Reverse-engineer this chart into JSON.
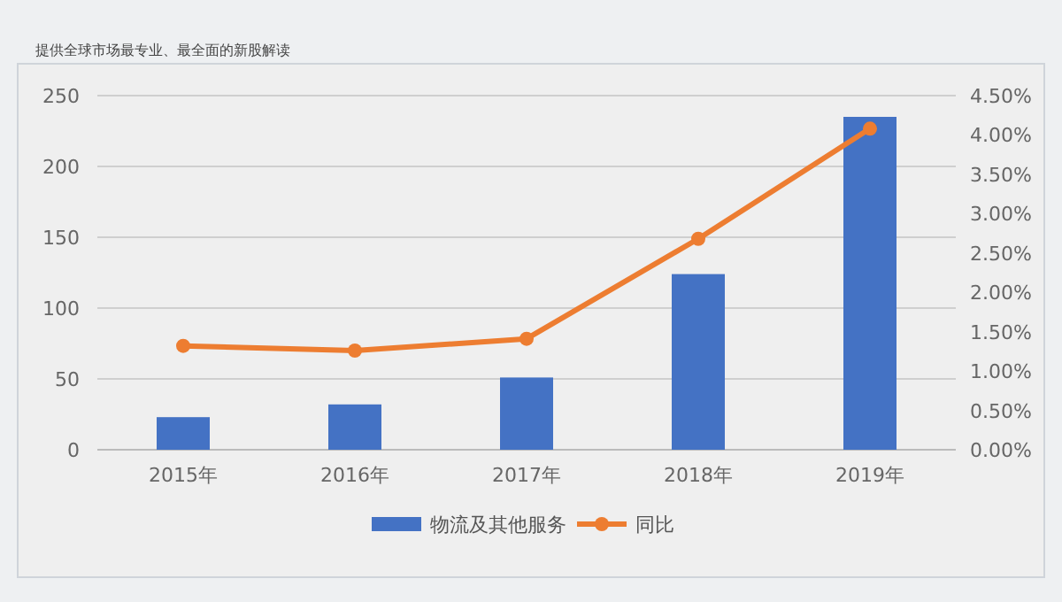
{
  "chart_data": {
    "type": "bar",
    "subtitle": "提供全球市场最专业、最全面的新股解读",
    "categories": [
      "2015年",
      "2016年",
      "2017年",
      "2018年",
      "2019年"
    ],
    "series": [
      {
        "name": "物流及其他服务",
        "color": "#4472c4",
        "values": [
          23,
          32,
          51,
          124,
          235
        ]
      },
      {
        "name": "同比",
        "type": "line",
        "axis": "y2",
        "color": "#ed7d31",
        "marker": "circle",
        "values": [
          1.32,
          1.26,
          1.41,
          2.68,
          4.08
        ]
      }
    ],
    "ylim": [
      0,
      250
    ],
    "yticks": [
      0,
      50,
      100,
      150,
      200,
      250
    ],
    "y2lim": [
      0,
      4.5
    ],
    "y2ticks": [
      {
        "value": 0,
        "label": "0.00%"
      },
      {
        "value": 0.5,
        "label": "0.50%"
      },
      {
        "value": 1,
        "label": "1.00%"
      },
      {
        "value": 1.5,
        "label": "1.50%"
      },
      {
        "value": 2,
        "label": "2.00%"
      },
      {
        "value": 2.5,
        "label": "2.50%"
      },
      {
        "value": 3,
        "label": "3.00%"
      },
      {
        "value": 3.5,
        "label": "3.50%"
      },
      {
        "value": 4,
        "label": "4.00%"
      },
      {
        "value": 4.5,
        "label": "4.50%"
      }
    ],
    "grid": "y",
    "legend": "bottom"
  }
}
